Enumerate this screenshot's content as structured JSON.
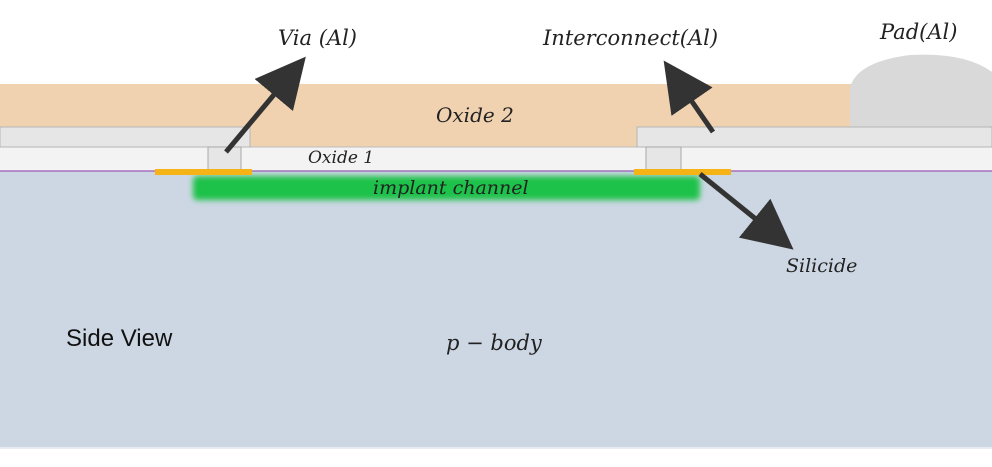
{
  "labels": {
    "via": "Via (Al)",
    "interconnect": "Interconnect(Al)",
    "pad": "Pad(Al)",
    "oxide2": "Oxide 2",
    "oxide1": "Oxide 1",
    "implant_channel": "implant channel",
    "silicide": "Silicide",
    "side_view": "Side View",
    "p_body": "p − body"
  },
  "colors": {
    "p_body": "#cdd7e3",
    "oxide2": "#f0d2b0",
    "oxide1": "#f3f3f3",
    "metal": "#e6e6e6",
    "pad": "#d9d9d9",
    "implant_channel": "#1ec24a",
    "silicide": "#f5b316",
    "arrow": "#333333",
    "boundary": "#9b59b6"
  },
  "icons": {
    "arrow": "arrow-icon"
  }
}
